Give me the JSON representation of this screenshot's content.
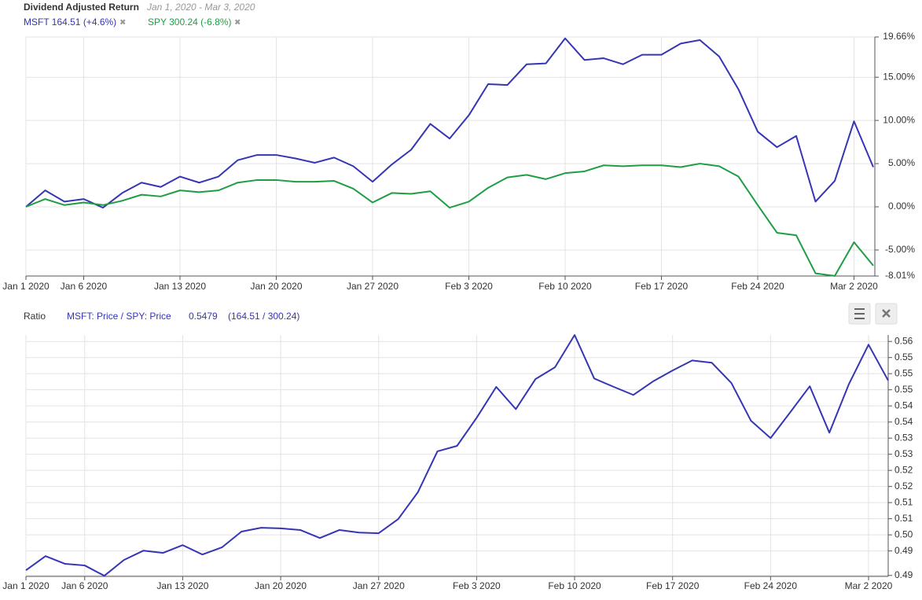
{
  "chart_data": [
    {
      "type": "line",
      "title": "Dividend Adjusted Return",
      "subtitle": "Jan 1, 2020 - Mar 3, 2020",
      "categories": [
        "Jan 1 2020",
        null,
        null,
        "Jan 6 2020",
        null,
        null,
        null,
        null,
        "Jan 13 2020",
        null,
        null,
        null,
        null,
        "Jan 20 2020",
        null,
        null,
        null,
        null,
        "Jan 27 2020",
        null,
        null,
        null,
        null,
        "Feb 3 2020",
        null,
        null,
        null,
        null,
        "Feb 10 2020",
        null,
        null,
        null,
        null,
        "Feb 17 2020",
        null,
        null,
        null,
        null,
        "Feb 24 2020",
        null,
        null,
        null,
        null,
        "Mar 2 2020",
        null
      ],
      "series": [
        {
          "name": "MSFT 164.51 (+4.6%)",
          "color": "#3535b5",
          "values": [
            0,
            1.9,
            0.6,
            0.9,
            -0.1,
            1.6,
            2.8,
            2.3,
            3.5,
            2.8,
            3.5,
            5.4,
            6.0,
            6.0,
            5.6,
            5.1,
            5.7,
            4.7,
            2.9,
            4.9,
            6.6,
            9.6,
            7.9,
            10.6,
            14.2,
            14.1,
            16.5,
            16.6,
            19.5,
            17.0,
            17.2,
            16.5,
            17.6,
            17.6,
            18.9,
            19.3,
            17.4,
            13.6,
            8.7,
            6.9,
            8.2,
            0.6,
            3.0,
            9.9,
            4.6
          ]
        },
        {
          "name": "SPY 300.24 (-6.8%)",
          "color": "#1e9e44",
          "values": [
            0,
            0.9,
            0.2,
            0.5,
            0.2,
            0.7,
            1.4,
            1.2,
            1.9,
            1.7,
            1.9,
            2.8,
            3.1,
            3.1,
            2.9,
            2.9,
            3.0,
            2.1,
            0.5,
            1.6,
            1.5,
            1.8,
            -0.1,
            0.6,
            2.2,
            3.4,
            3.7,
            3.2,
            3.9,
            4.1,
            4.8,
            4.7,
            4.8,
            4.8,
            4.6,
            5.0,
            4.7,
            3.5,
            0.2,
            -3.0,
            -3.3,
            -7.7,
            -8.0,
            -4.1,
            -6.8
          ]
        }
      ],
      "ylim": [
        -8.01,
        19.66
      ],
      "yticks": [
        {
          "value": 19.66,
          "label": "19.66%"
        },
        {
          "value": 15,
          "label": "15.00%"
        },
        {
          "value": 10,
          "label": "10.00%"
        },
        {
          "value": 5,
          "label": "5.00%"
        },
        {
          "value": 0,
          "label": "0.00%"
        },
        {
          "value": -5,
          "label": "-5.00%"
        },
        {
          "value": -8.01,
          "label": "-8.01%"
        }
      ],
      "grid": true
    },
    {
      "type": "line",
      "title": "Ratio",
      "annotations": [
        "0.5479",
        "(164.51 / 300.24)"
      ],
      "categories": [
        "Jan 1 2020",
        null,
        null,
        "Jan 6 2020",
        null,
        null,
        null,
        null,
        "Jan 13 2020",
        null,
        null,
        null,
        null,
        "Jan 20 2020",
        null,
        null,
        null,
        null,
        "Jan 27 2020",
        null,
        null,
        null,
        null,
        "Feb 3 2020",
        null,
        null,
        null,
        null,
        "Feb 10 2020",
        null,
        null,
        null,
        null,
        "Feb 17 2020",
        null,
        null,
        null,
        null,
        "Feb 24 2020",
        null,
        null,
        null,
        null,
        "Mar 2 2020",
        null
      ],
      "series": [
        {
          "name": "MSFT: Price / SPY: Price",
          "color": "#3535b5",
          "values": [
            0.489,
            0.4934,
            0.491,
            0.4905,
            0.4873,
            0.4922,
            0.4951,
            0.4944,
            0.4968,
            0.4939,
            0.4961,
            0.501,
            0.5022,
            0.502,
            0.5015,
            0.499,
            0.5015,
            0.5007,
            0.5005,
            0.5049,
            0.5132,
            0.5259,
            0.5276,
            0.5363,
            0.5459,
            0.539,
            0.5483,
            0.552,
            0.562,
            0.5485,
            0.5459,
            0.5434,
            0.5476,
            0.551,
            0.5541,
            0.5534,
            0.5471,
            0.5354,
            0.53,
            0.538,
            0.5461,
            0.5317,
            0.5468,
            0.559,
            0.5479
          ]
        }
      ],
      "ylim": [
        0.4871,
        0.562
      ],
      "yticks": [
        0.56,
        {
          "value": 0.555,
          "label": "0.55"
        },
        {
          "value": 0.55,
          "label": "0.55"
        },
        {
          "value": 0.545,
          "label": "0.55"
        },
        {
          "value": 0.54,
          "label": "0.54"
        },
        {
          "value": 0.535,
          "label": "0.54"
        },
        {
          "value": 0.53,
          "label": "0.53"
        },
        {
          "value": 0.525,
          "label": "0.53"
        },
        {
          "value": 0.52,
          "label": "0.52"
        },
        {
          "value": 0.515,
          "label": "0.52"
        },
        {
          "value": 0.51,
          "label": "0.51"
        },
        {
          "value": 0.505,
          "label": "0.51"
        },
        {
          "value": 0.5,
          "label": "0.50"
        },
        {
          "value": 0.495,
          "label": "0.49"
        },
        {
          "value": 0.4874,
          "label": "0.49"
        }
      ],
      "grid": true
    }
  ]
}
